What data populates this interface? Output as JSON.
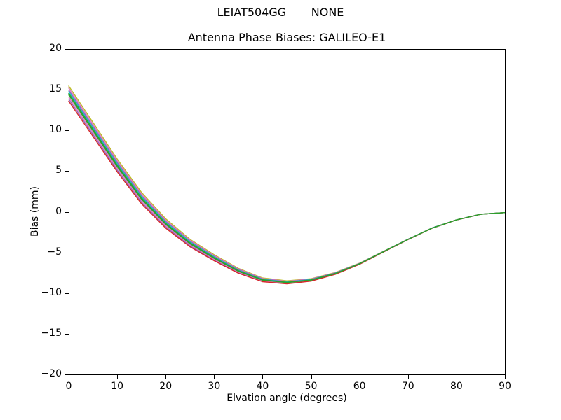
{
  "figure": {
    "suptitle": "LEIAT504GG       NONE",
    "background": "#ffffff"
  },
  "chart_data": {
    "type": "line",
    "title": "Antenna Phase Biases: GALILEO-E1",
    "xlabel": "Elvation angle (degrees)",
    "ylabel": "Bias (mm)",
    "xlim": [
      0,
      90
    ],
    "ylim": [
      -20,
      20
    ],
    "grid": false,
    "legend": "none",
    "axis_color": "#000000",
    "line_width": 1.4,
    "xticks": {
      "values": [
        0,
        10,
        20,
        30,
        40,
        50,
        60,
        70,
        80,
        90
      ],
      "labels": [
        "0",
        "10",
        "20",
        "30",
        "40",
        "50",
        "60",
        "70",
        "80",
        "90"
      ]
    },
    "yticks": {
      "values": [
        20,
        15,
        10,
        5,
        0,
        -5,
        -10,
        -15,
        -20
      ],
      "labels": [
        "20",
        "15",
        "10",
        "5",
        "0",
        "−5",
        "−10",
        "−15",
        "−20"
      ]
    },
    "x": [
      0,
      5,
      10,
      15,
      20,
      25,
      30,
      35,
      40,
      45,
      50,
      55,
      60,
      65,
      70,
      75,
      80,
      85,
      90
    ],
    "series": [
      {
        "name": "line-1",
        "color": "#bcbd22",
        "values": [
          15.45,
          10.98,
          6.49,
          2.39,
          -0.85,
          -3.38,
          -5.28,
          -6.96,
          -8.14,
          -8.49,
          -8.23,
          -7.47,
          -6.32,
          -4.85,
          -3.37,
          -1.98,
          -0.99,
          -0.29,
          -0.1
        ]
      },
      {
        "name": "line-2",
        "color": "#e377c2",
        "values": [
          15.2,
          10.74,
          6.28,
          2.2,
          -1.0,
          -3.5,
          -5.38,
          -7.04,
          -8.2,
          -8.54,
          -8.27,
          -7.5,
          -6.34,
          -4.86,
          -3.38,
          -1.98,
          -0.99,
          -0.29,
          -0.1
        ]
      },
      {
        "name": "line-3",
        "color": "#9467bd",
        "values": [
          14.95,
          10.51,
          6.07,
          2.01,
          -1.16,
          -3.62,
          -5.48,
          -7.12,
          -8.26,
          -8.59,
          -8.31,
          -7.53,
          -6.36,
          -4.87,
          -3.38,
          -1.99,
          -0.99,
          -0.29,
          -0.1
        ]
      },
      {
        "name": "line-4",
        "color": "#17becf",
        "values": [
          14.75,
          10.33,
          5.9,
          1.86,
          -1.28,
          -3.72,
          -5.56,
          -7.19,
          -8.31,
          -8.63,
          -8.34,
          -7.56,
          -6.37,
          -4.88,
          -3.39,
          -1.99,
          -1.0,
          -0.3,
          -0.1
        ]
      },
      {
        "name": "line-5",
        "color": "#9467bd",
        "values": [
          13.85,
          9.49,
          5.13,
          1.19,
          -1.84,
          -4.18,
          -5.92,
          -7.48,
          -8.54,
          -8.81,
          -8.49,
          -7.67,
          -6.44,
          -4.93,
          -3.42,
          -2.01,
          -1.01,
          -0.31,
          -0.1
        ]
      },
      {
        "name": "line-6",
        "color": "#e377c2",
        "values": [
          14.1,
          9.72,
          5.35,
          1.38,
          -1.69,
          -4.05,
          -5.82,
          -7.4,
          -8.48,
          -8.76,
          -8.45,
          -7.64,
          -6.42,
          -4.92,
          -3.41,
          -2.01,
          -1.0,
          -0.3,
          -0.1
        ]
      },
      {
        "name": "line-7",
        "color": "#d62728",
        "values": [
          13.6,
          9.26,
          4.92,
          1.0,
          -2.0,
          -4.3,
          -6.02,
          -7.56,
          -8.6,
          -8.86,
          -8.53,
          -7.7,
          -6.46,
          -4.94,
          -3.42,
          -2.02,
          -1.01,
          -0.31,
          -0.1
        ]
      },
      {
        "name": "line-8",
        "color": "#2ca02c",
        "values": [
          14.55,
          10.14,
          5.73,
          1.71,
          -1.41,
          -3.82,
          -5.64,
          -7.25,
          -8.36,
          -8.67,
          -8.38,
          -7.58,
          -6.39,
          -4.89,
          -3.4,
          -2.0,
          -1.0,
          -0.3,
          -0.1
        ]
      },
      {
        "name": "line-9",
        "color": "#2ca02c",
        "values": [
          14.35,
          9.95,
          5.56,
          1.56,
          -1.53,
          -3.93,
          -5.72,
          -7.32,
          -8.41,
          -8.71,
          -8.41,
          -7.61,
          -6.4,
          -4.9,
          -3.4,
          -2.0,
          -1.0,
          -0.3,
          -0.1
        ]
      }
    ]
  }
}
